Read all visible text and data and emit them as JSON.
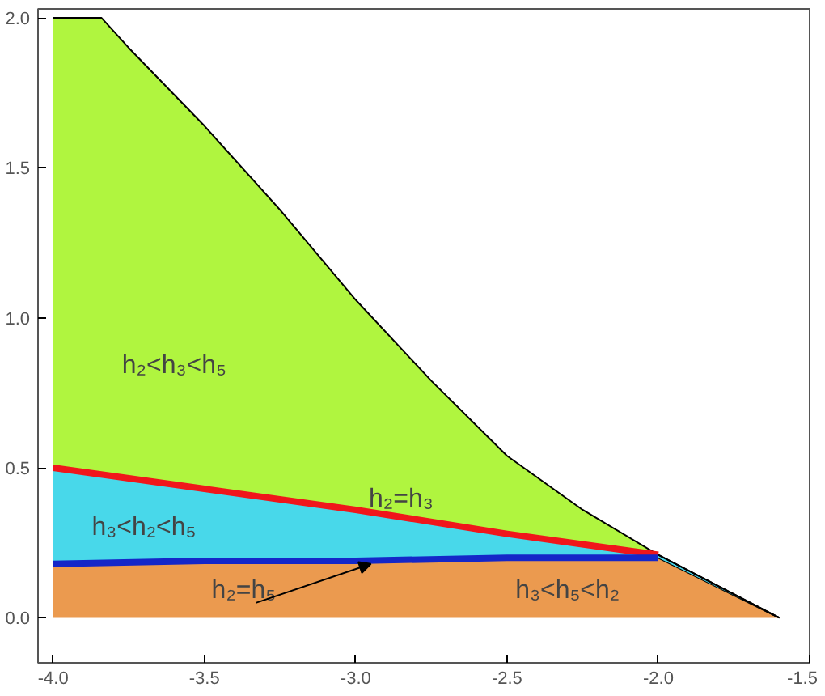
{
  "chart_data": {
    "type": "area",
    "stacked": true,
    "x": [
      -4,
      -3.84,
      -3.75,
      -3.5,
      -3.25,
      -3.0,
      -2.75,
      -2.5,
      -2.25,
      -2.0,
      -1.6
    ],
    "series": [
      {
        "color": "#eb9a4f",
        "values": [
          0.18,
          0.18,
          0.18,
          0.19,
          0.19,
          0.19,
          0.19,
          0.2,
          0.2,
          0.2,
          0
        ]
      },
      {
        "color": "#48d8ea",
        "values": [
          0.32,
          0.3,
          0.28,
          0.24,
          0.2,
          0.17,
          0.13,
          0.08,
          0.05,
          0.01,
          0
        ]
      },
      {
        "color": "#b0f53f",
        "values": [
          1.5,
          1.52,
          1.44,
          1.21,
          0.97,
          0.7,
          0.47,
          0.26,
          0.11,
          0,
          0
        ]
      },
      {
        "type": "line",
        "color": "#f0161b",
        "x": [
          -4,
          -3.5,
          -3,
          -2.5,
          -2
        ],
        "values": [
          0.5,
          0.43,
          0.36,
          0.28,
          0.21
        ]
      },
      {
        "type": "line",
        "color": "#1527c8",
        "x": [
          -4,
          -3.5,
          -3,
          -2.5,
          -2
        ],
        "values": [
          0.18,
          0.19,
          0.19,
          0.2,
          0.2
        ]
      }
    ],
    "annotations": [
      "h₂<h₃<h₅",
      "h₃<h₂<h₅",
      {
        "text": "h₂=h₅",
        "x": -2.95,
        "y": 0.19
      },
      {
        "text": "h₂=h₃",
        "x": -2.85,
        "y": 0.33
      },
      "h₃<h₅<h₂"
    ],
    "xlim": [
      -4.05,
      -1.5
    ],
    "ylim": [
      -0.15,
      2.03
    ],
    "xticks": [
      {
        "value": -4,
        "label": "-4.0"
      },
      {
        "value": -3.5,
        "label": "-3.5"
      },
      {
        "value": -3,
        "label": "-3.0"
      },
      {
        "value": -2.5,
        "label": "-2.5"
      },
      {
        "value": -2,
        "label": "-2.0"
      },
      {
        "value": -1.5,
        "label": "-1.5"
      }
    ],
    "yticks": [
      {
        "value": 0,
        "label": "0.0"
      },
      {
        "value": 0.5,
        "label": "0.5"
      },
      {
        "value": 1,
        "label": "1.0"
      },
      {
        "value": 1.5,
        "label": "1.5"
      },
      {
        "value": 2,
        "label": "2.0"
      }
    ]
  }
}
